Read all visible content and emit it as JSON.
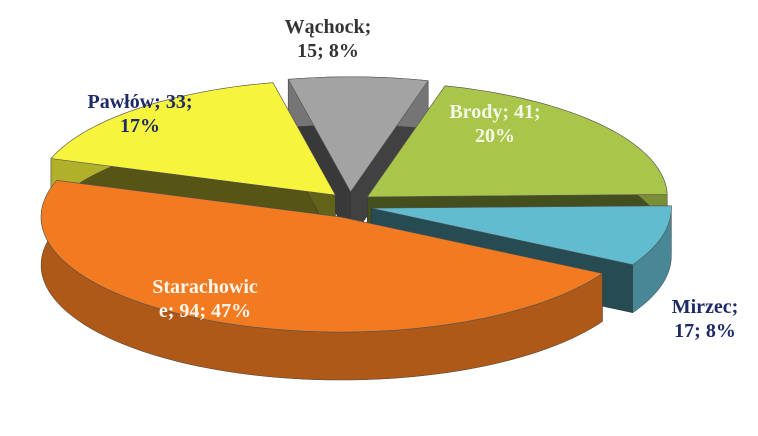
{
  "chart_data": {
    "type": "pie",
    "categories": [
      "Brody",
      "Mirzec",
      "Starachowice",
      "Pawłów",
      "Wąchock"
    ],
    "values": [
      41,
      17,
      94,
      33,
      15
    ],
    "value_labels": [
      "Brody; 41;\n20%",
      "Mirzec;\n17; 8%",
      "Starachowic\ne; 94; 47%",
      "Pawłów; 33;\n17%",
      "Wąchock;\n15; 8%"
    ],
    "colors": [
      "#a9c64a",
      "#62bcd0",
      "#f27b22",
      "#f6f43c",
      "#a3a3a3"
    ]
  }
}
